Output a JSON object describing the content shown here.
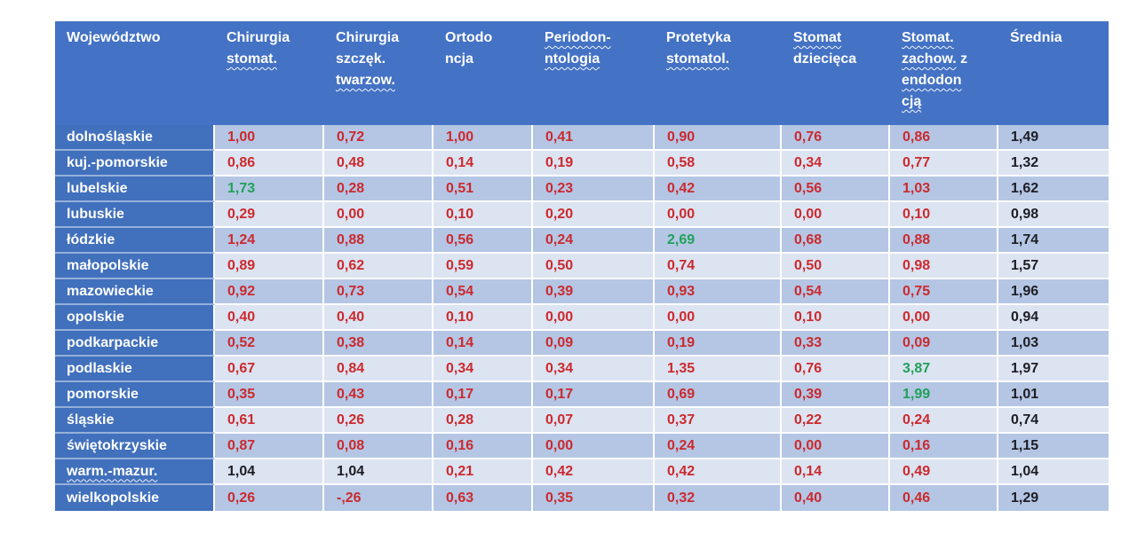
{
  "colors": {
    "header_bg": "#4472C4",
    "row_header_bg": "#4170BC",
    "band_dark": "#B4C6E4",
    "band_light": "#DCE3F1",
    "value_red": "#CB2A2E",
    "value_green": "#21A159",
    "value_black": "#1D1D24",
    "grid_line": "#FFFFFF"
  },
  "table": {
    "columns": [
      {
        "key": "wojewodztwo",
        "lines": [
          [
            {
              "t": "Województwo",
              "w": false
            }
          ]
        ]
      },
      {
        "key": "chirurgia-stomat",
        "lines": [
          [
            {
              "t": "Chirurgia",
              "w": false
            }
          ],
          [
            {
              "t": "stomat.",
              "w": true
            }
          ]
        ]
      },
      {
        "key": "chirurgia-szczek-twarzow",
        "lines": [
          [
            {
              "t": "Chirurgia",
              "w": false
            }
          ],
          [
            {
              "t": "szczęk.",
              "w": false
            }
          ],
          [
            {
              "t": "twarzow.",
              "w": true
            }
          ]
        ]
      },
      {
        "key": "ortodoncja",
        "lines": [
          [
            {
              "t": "Ortodo",
              "w": false
            }
          ],
          [
            {
              "t": "ncja",
              "w": false
            }
          ]
        ]
      },
      {
        "key": "periodontologia",
        "lines": [
          [
            {
              "t": "Periodon-",
              "w": true
            }
          ],
          [
            {
              "t": "ntologia",
              "w": true
            }
          ]
        ]
      },
      {
        "key": "protetyka-stomatol",
        "lines": [
          [
            {
              "t": "Protetyka",
              "w": false
            }
          ],
          [
            {
              "t": "stomatol.",
              "w": true
            }
          ]
        ]
      },
      {
        "key": "stomat-dziecieca",
        "lines": [
          [
            {
              "t": "Stomat",
              "w": true
            }
          ],
          [
            {
              "t": "dziecięca",
              "w": false
            }
          ]
        ]
      },
      {
        "key": "stomat-zachow-z-endodoncja",
        "lines": [
          [
            {
              "t": "Stomat.",
              "w": true
            }
          ],
          [
            {
              "t": "zachow.",
              "w": true
            },
            {
              "t": " z",
              "w": false
            }
          ],
          [
            {
              "t": "endodon",
              "w": true
            }
          ],
          [
            {
              "t": "cją",
              "w": true
            }
          ]
        ]
      },
      {
        "key": "srednia",
        "lines": [
          [
            {
              "t": "Średnia",
              "w": false
            }
          ]
        ]
      }
    ],
    "rows": [
      {
        "name": "dolnośląskie",
        "w": false,
        "cells": [
          [
            "1,00",
            "red"
          ],
          [
            "0,72",
            "red"
          ],
          [
            "1,00",
            "red"
          ],
          [
            "0,41",
            "red"
          ],
          [
            "0,90",
            "red"
          ],
          [
            "0,76",
            "red"
          ],
          [
            "0,86",
            "red"
          ],
          [
            "1,49",
            "black"
          ]
        ]
      },
      {
        "name": "kuj.-pomorskie",
        "w": false,
        "cells": [
          [
            "0,86",
            "red"
          ],
          [
            "0,48",
            "red"
          ],
          [
            "0,14",
            "red"
          ],
          [
            "0,19",
            "red"
          ],
          [
            "0,58",
            "red"
          ],
          [
            "0,34",
            "red"
          ],
          [
            "0,77",
            "red"
          ],
          [
            "1,32",
            "black"
          ]
        ]
      },
      {
        "name": "lubelskie",
        "w": false,
        "cells": [
          [
            "1,73",
            "green"
          ],
          [
            "0,28",
            "red"
          ],
          [
            "0,51",
            "red"
          ],
          [
            "0,23",
            "red"
          ],
          [
            "0,42",
            "red"
          ],
          [
            "0,56",
            "red"
          ],
          [
            "1,03",
            "red"
          ],
          [
            "1,62",
            "black"
          ]
        ]
      },
      {
        "name": "lubuskie",
        "w": false,
        "cells": [
          [
            "0,29",
            "red"
          ],
          [
            "0,00",
            "red"
          ],
          [
            "0,10",
            "red"
          ],
          [
            "0,20",
            "red"
          ],
          [
            "0,00",
            "red"
          ],
          [
            "0,00",
            "red"
          ],
          [
            "0,10",
            "red"
          ],
          [
            "0,98",
            "black"
          ]
        ]
      },
      {
        "name": "łódzkie",
        "w": false,
        "cells": [
          [
            "1,24",
            "red"
          ],
          [
            "0,88",
            "red"
          ],
          [
            "0,56",
            "red"
          ],
          [
            "0,24",
            "red"
          ],
          [
            "2,69",
            "green"
          ],
          [
            "0,68",
            "red"
          ],
          [
            "0,88",
            "red"
          ],
          [
            "1,74",
            "black"
          ]
        ]
      },
      {
        "name": "małopolskie",
        "w": false,
        "cells": [
          [
            "0,89",
            "red"
          ],
          [
            "0,62",
            "red"
          ],
          [
            "0,59",
            "red"
          ],
          [
            "0,50",
            "red"
          ],
          [
            "0,74",
            "red"
          ],
          [
            "0,50",
            "red"
          ],
          [
            "0,98",
            "red"
          ],
          [
            "1,57",
            "black"
          ]
        ]
      },
      {
        "name": "mazowieckie",
        "w": false,
        "cells": [
          [
            "0,92",
            "red"
          ],
          [
            "0,73",
            "red"
          ],
          [
            "0,54",
            "red"
          ],
          [
            "0,39",
            "red"
          ],
          [
            "0,93",
            "red"
          ],
          [
            "0,54",
            "red"
          ],
          [
            "0,75",
            "red"
          ],
          [
            "1,96",
            "black"
          ]
        ]
      },
      {
        "name": "opolskie",
        "w": false,
        "cells": [
          [
            "0,40",
            "red"
          ],
          [
            "0,40",
            "red"
          ],
          [
            "0,10",
            "red"
          ],
          [
            "0,00",
            "red"
          ],
          [
            "0,00",
            "red"
          ],
          [
            "0,10",
            "red"
          ],
          [
            "0,00",
            "red"
          ],
          [
            "0,94",
            "black"
          ]
        ]
      },
      {
        "name": "podkarpackie",
        "w": false,
        "cells": [
          [
            "0,52",
            "red"
          ],
          [
            "0,38",
            "red"
          ],
          [
            "0,14",
            "red"
          ],
          [
            "0,09",
            "red"
          ],
          [
            "0,19",
            "red"
          ],
          [
            "0,33",
            "red"
          ],
          [
            "0,09",
            "red"
          ],
          [
            "1,03",
            "black"
          ]
        ]
      },
      {
        "name": "podlaskie",
        "w": false,
        "cells": [
          [
            "0,67",
            "red"
          ],
          [
            "0,84",
            "red"
          ],
          [
            "0,34",
            "red"
          ],
          [
            "0,34",
            "red"
          ],
          [
            "1,35",
            "red"
          ],
          [
            "0,76",
            "red"
          ],
          [
            "3,87",
            "green"
          ],
          [
            "1,97",
            "black"
          ]
        ]
      },
      {
        "name": "pomorskie",
        "w": false,
        "cells": [
          [
            "0,35",
            "red"
          ],
          [
            "0,43",
            "red"
          ],
          [
            "0,17",
            "red"
          ],
          [
            "0,17",
            "red"
          ],
          [
            "0,69",
            "red"
          ],
          [
            "0,39",
            "red"
          ],
          [
            "1,99",
            "green"
          ],
          [
            "1,01",
            "black"
          ]
        ]
      },
      {
        "name": "śląskie",
        "w": false,
        "cells": [
          [
            "0,61",
            "red"
          ],
          [
            "0,26",
            "red"
          ],
          [
            "0,28",
            "red"
          ],
          [
            "0,07",
            "red"
          ],
          [
            "0,37",
            "red"
          ],
          [
            "0,22",
            "red"
          ],
          [
            "0,24",
            "red"
          ],
          [
            "0,74",
            "black"
          ]
        ]
      },
      {
        "name": "świętokrzyskie",
        "w": false,
        "cells": [
          [
            "0,87",
            "red"
          ],
          [
            "0,08",
            "red"
          ],
          [
            "0,16",
            "red"
          ],
          [
            "0,00",
            "red"
          ],
          [
            "0,24",
            "red"
          ],
          [
            "0,00",
            "red"
          ],
          [
            "0,16",
            "red"
          ],
          [
            "1,15",
            "black"
          ]
        ]
      },
      {
        "name": "warm.-mazur.",
        "w": true,
        "cells": [
          [
            "1,04",
            "black"
          ],
          [
            "1,04",
            "black"
          ],
          [
            "0,21",
            "red"
          ],
          [
            "0,42",
            "red"
          ],
          [
            "0,42",
            "red"
          ],
          [
            "0,14",
            "red"
          ],
          [
            "0,49",
            "red"
          ],
          [
            "1,04",
            "black"
          ]
        ]
      },
      {
        "name": "wielkopolskie",
        "w": false,
        "cells": [
          [
            "0,26",
            "red"
          ],
          [
            "-,26",
            "red"
          ],
          [
            "0,63",
            "red"
          ],
          [
            "0,35",
            "red"
          ],
          [
            "0,32",
            "red"
          ],
          [
            "0,40",
            "red"
          ],
          [
            "0,46",
            "red"
          ],
          [
            "1,29",
            "black"
          ]
        ]
      }
    ]
  }
}
